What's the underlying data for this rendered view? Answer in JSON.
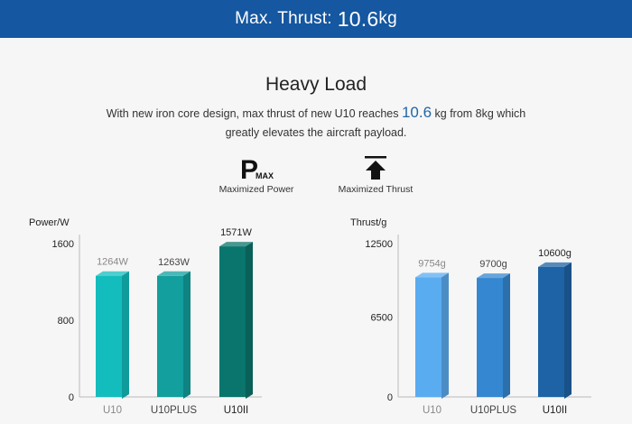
{
  "banner": {
    "prefix": "Max. Thrust: ",
    "value": "10.6",
    "unit": "kg"
  },
  "headline": "Heavy Load",
  "description": {
    "part1": "With new iron core design, max thrust of new U10 reaches ",
    "highlight": "10.6",
    "part2": " kg from 8kg which",
    "line2": "greatly elevates the aircraft payload."
  },
  "features": [
    {
      "icon": "p-max-icon",
      "glyph_main": "P",
      "glyph_sub": "MAX",
      "label": "Maximized Power"
    },
    {
      "icon": "up-arrow-icon",
      "label": "Maximized Thrust"
    }
  ],
  "chart_data": [
    {
      "type": "bar",
      "ylabel": "Power/W",
      "ylim": [
        0,
        1600
      ],
      "yticks": [
        "1600",
        "800",
        "0"
      ],
      "categories": [
        "U10",
        "U10PLUS",
        "U10II"
      ],
      "values": [
        1264,
        1263,
        1571
      ],
      "data_labels": [
        "1264W",
        "1263W",
        "1571W"
      ],
      "colors": [
        "#13bdbd",
        "#129f9e",
        "#0a756c"
      ],
      "grid": false
    },
    {
      "type": "bar",
      "ylabel": "Thrust/g",
      "ylim": [
        0,
        12500
      ],
      "yticks": [
        "12500",
        "6500",
        "0"
      ],
      "categories": [
        "U10",
        "U10PLUS",
        "U10II"
      ],
      "values": [
        9754,
        9700,
        10600
      ],
      "data_labels": [
        "9754g",
        "9700g",
        "10600g"
      ],
      "colors": [
        "#5aacf0",
        "#3487d0",
        "#1e63a6"
      ],
      "grid": false
    }
  ]
}
